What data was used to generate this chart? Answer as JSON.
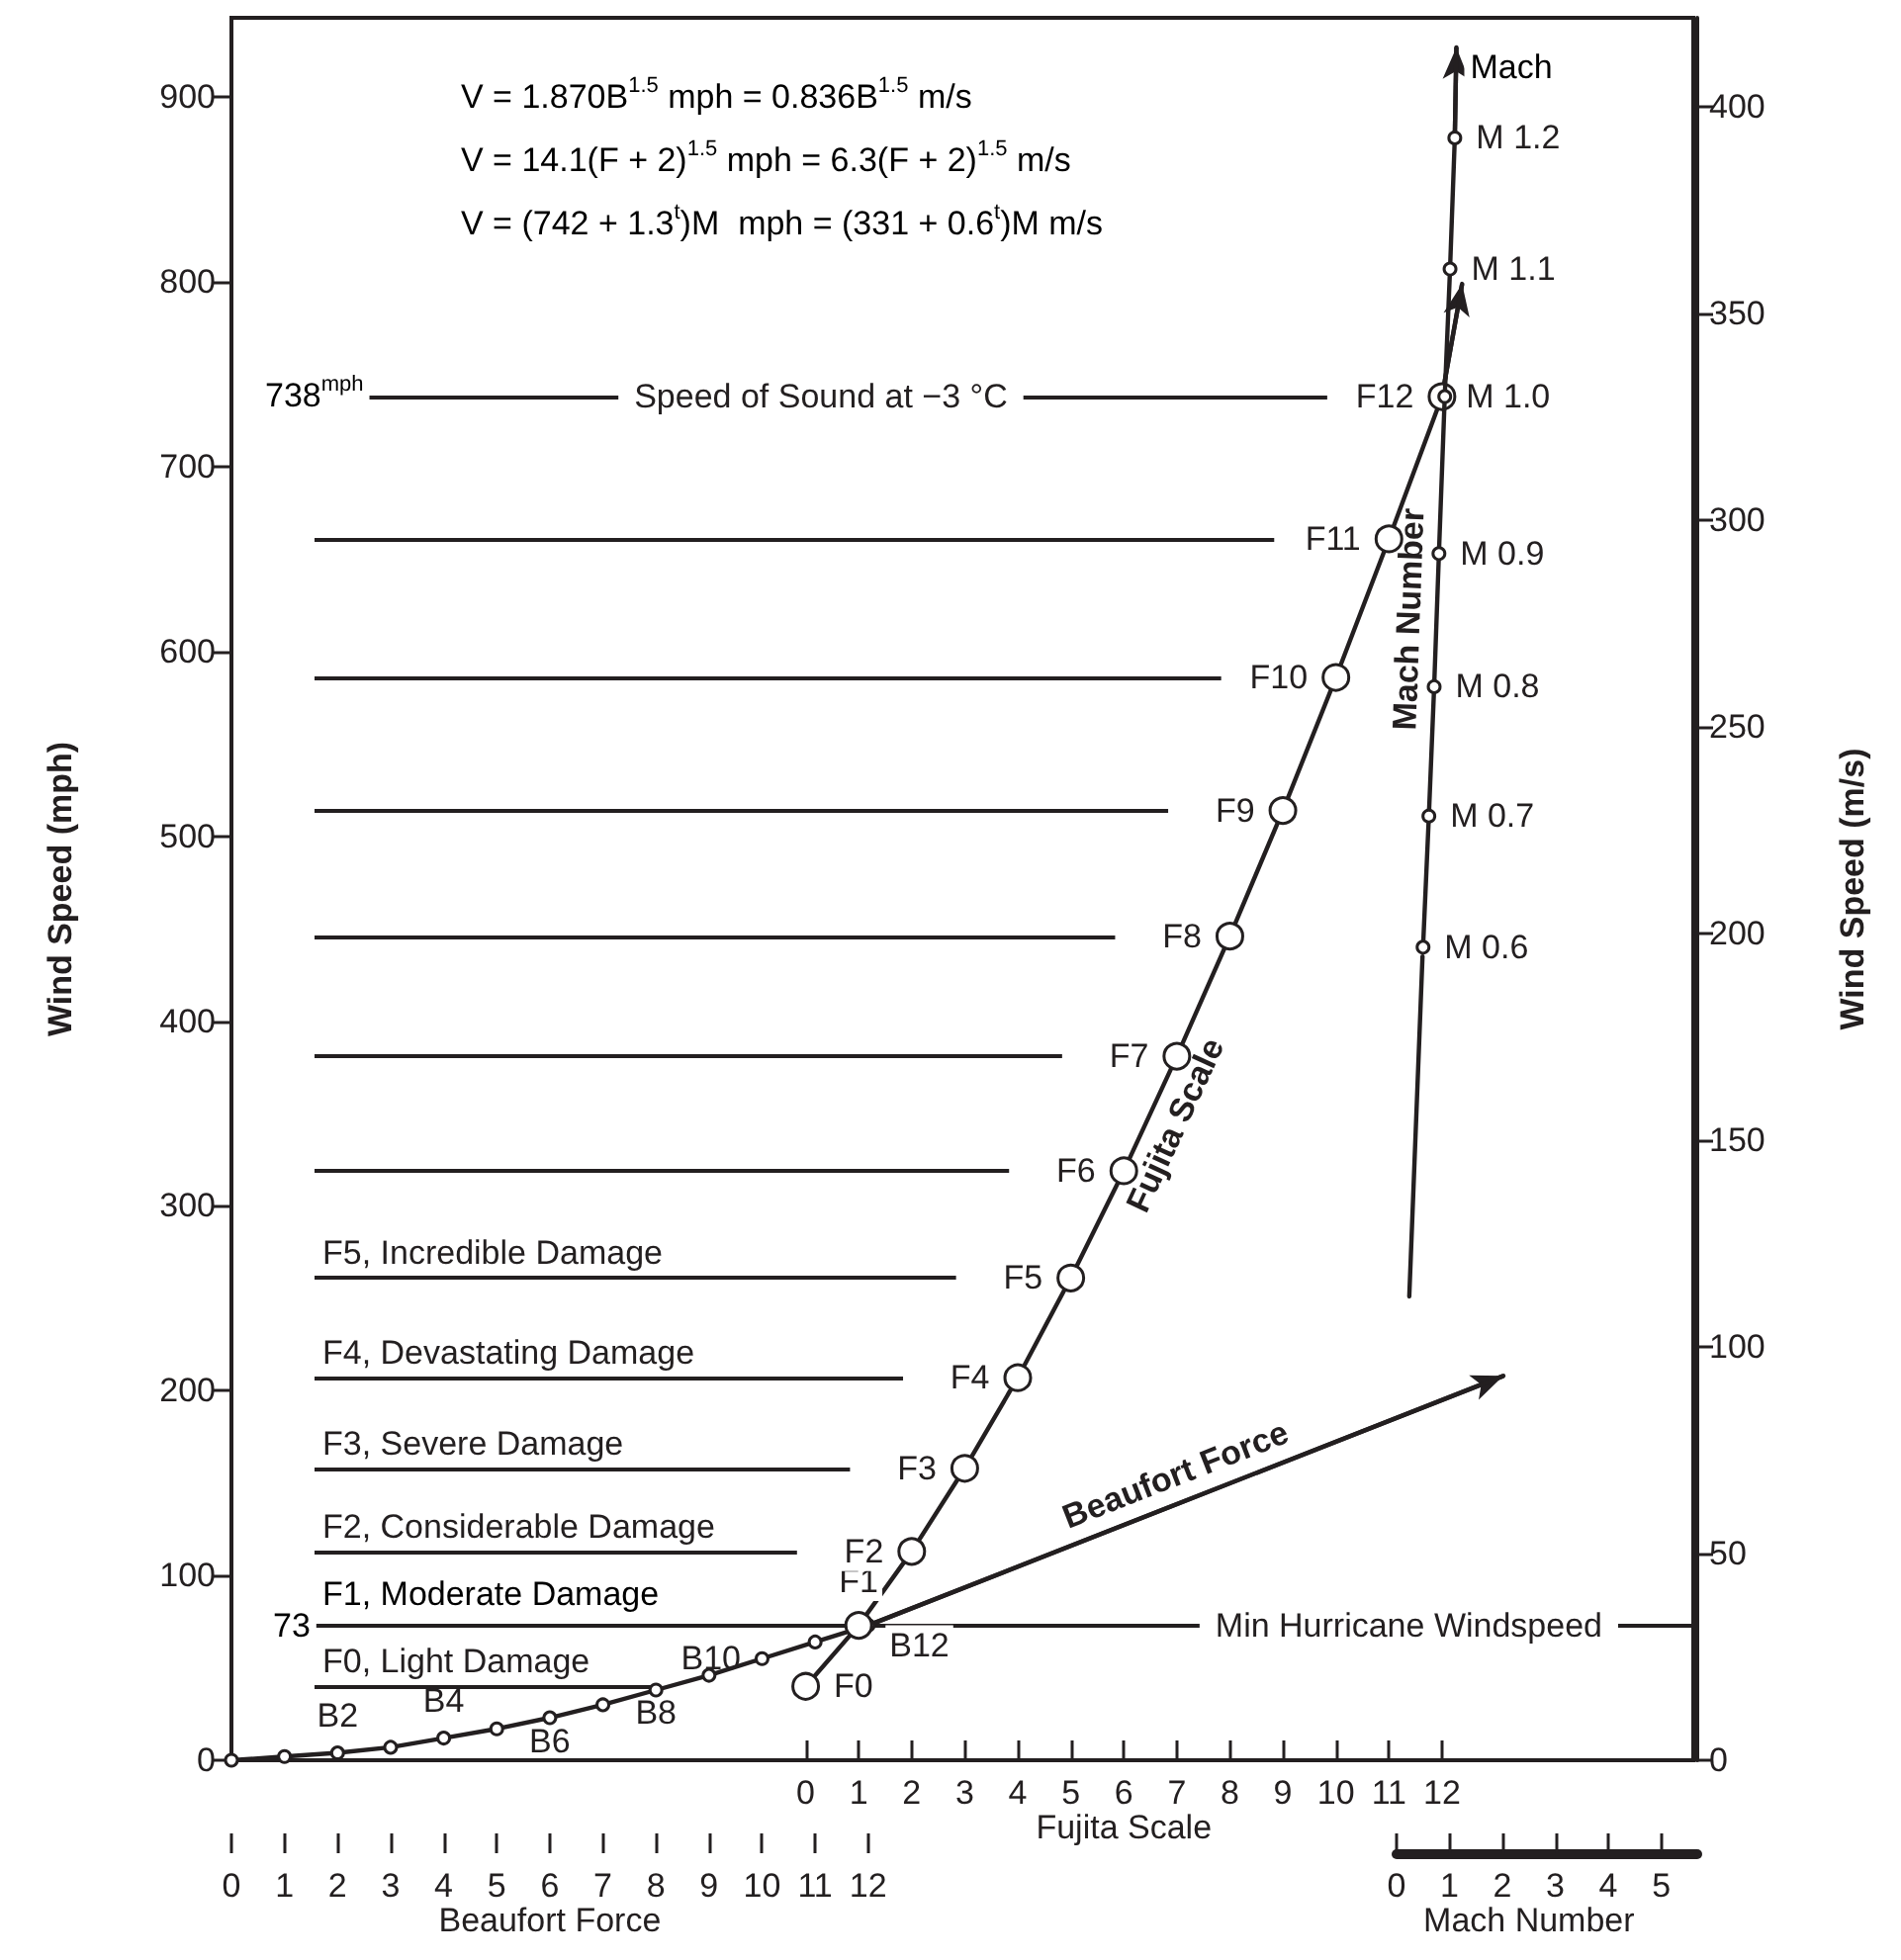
{
  "chart_data": [
    {
      "type": "line",
      "xlabel": "Beaufort Force",
      "x2label": "Fujita Scale",
      "ylabel": "Wind Speed (mph)",
      "y2label": "Wind Speed (m/s)",
      "xlim": [
        0,
        27.55
      ],
      "xticks": [
        0,
        1,
        2,
        3,
        4,
        5,
        6,
        7,
        8,
        9,
        10,
        11,
        12
      ],
      "x2lim": [
        -10.83,
        16.74
      ],
      "x2ticks": [
        0,
        1,
        2,
        3,
        4,
        5,
        6,
        7,
        8,
        9,
        10,
        11,
        12
      ],
      "ylim": [
        0,
        943
      ],
      "yticks": [
        0,
        100,
        200,
        300,
        400,
        500,
        600,
        700,
        800,
        900
      ],
      "y2lim": [
        0,
        421.6
      ],
      "y2ticks": [
        0,
        50,
        100,
        150,
        200,
        250,
        300,
        350,
        400
      ],
      "marker": "circle",
      "line_style": "solid",
      "grid": false,
      "legend": false,
      "series": [
        {
          "name": "Beaufort Force",
          "color": "#231f20",
          "x": [
            0,
            1,
            2,
            3,
            4,
            5,
            6,
            7,
            8,
            9,
            10,
            11,
            12,
            23.97
          ],
          "values": [
            0,
            2,
            4,
            7,
            12,
            17,
            23,
            30,
            38,
            46,
            55,
            64,
            73,
            208
          ],
          "value_labels": [
            null,
            null,
            "B2",
            null,
            "B4",
            null,
            "B6",
            null,
            "B8",
            null,
            "B10",
            null,
            "B12",
            null
          ]
        },
        {
          "name": "Fujita Scale",
          "color": "#231f20",
          "axis": "x2",
          "x": [
            0,
            1,
            2,
            3,
            4,
            5,
            6,
            7,
            8,
            9,
            10,
            11,
            12,
            12.38
          ],
          "values": [
            40,
            73,
            113,
            158,
            207,
            261,
            319,
            381,
            446,
            514,
            586,
            661,
            738,
            799
          ],
          "value_labels": [
            "F0",
            "F1",
            "F2",
            "F3",
            "F4",
            "F5",
            "F6",
            "F7",
            "F8",
            "F9",
            "F10",
            "F11",
            "F12",
            null
          ]
        }
      ],
      "ref_lines": [
        {
          "axis": "y",
          "value": 40,
          "label": "F0, Light Damage"
        },
        {
          "axis": "y",
          "value": 73,
          "label": "Min Hurricane Windspeed"
        },
        {
          "axis": "y",
          "value": 113,
          "label": "F2, Considerable Damage"
        },
        {
          "axis": "y",
          "value": 158,
          "label": "F3, Severe Damage"
        },
        {
          "axis": "y",
          "value": 207,
          "label": "F4, Devastating Damage"
        },
        {
          "axis": "y",
          "value": 261,
          "label": "F5, Incredible Damage"
        },
        {
          "axis": "y",
          "value": 319
        },
        {
          "axis": "y",
          "value": 381
        },
        {
          "axis": "y",
          "value": 446
        },
        {
          "axis": "y",
          "value": 514
        },
        {
          "axis": "y",
          "value": 586
        },
        {
          "axis": "y",
          "value": 661
        },
        {
          "axis": "y",
          "value": 738,
          "label": "Speed of Sound at −3 °C"
        }
      ],
      "annotations": [
        "V = 1.870B$^{1.5}$ mph = 0.836B$^{1.5}$ m/s",
        "V = 14.1(F + 2)$^{1.5}$ mph = 6.3(F + 2)$^{1.5}$ m/s",
        "V = (742 + 1.3$^{t}$)M  mph = (331 + 0.6$^{t}$)M m/s",
        "738$^{mph}$",
        "73",
        "F1, Moderate Damage"
      ]
    },
    {
      "type": "line",
      "xlabel": "Mach Number",
      "xlim": [
        0,
        5.68
      ],
      "xticks": [
        0,
        1,
        2,
        3,
        4,
        5
      ],
      "ylim": [
        0,
        943
      ],
      "tick_labels": "x",
      "marker": "circle",
      "line_style": "solid",
      "series": [
        {
          "color": "#231f20",
          "marker": "none",
          "x": [
            0.24,
            0.49
          ],
          "values": [
            251,
            435
          ]
        },
        {
          "name": "Mach Number",
          "color": "#231f20",
          "x": [
            0.5,
            0.61,
            0.71,
            0.8,
            0.91,
            1.01,
            1.1,
            1.13
          ],
          "values": [
            440,
            511,
            581,
            653,
            738,
            807,
            878,
            927
          ],
          "value_labels": [
            "M 0.6",
            "M 0.7",
            "M 0.8",
            "M 0.9",
            "M 1.0",
            "M 1.1",
            "M 1.2",
            null
          ]
        }
      ],
      "annotations": [
        {
          "text": "Mach",
          "x": 1.13,
          "y": 927
        }
      ]
    }
  ]
}
